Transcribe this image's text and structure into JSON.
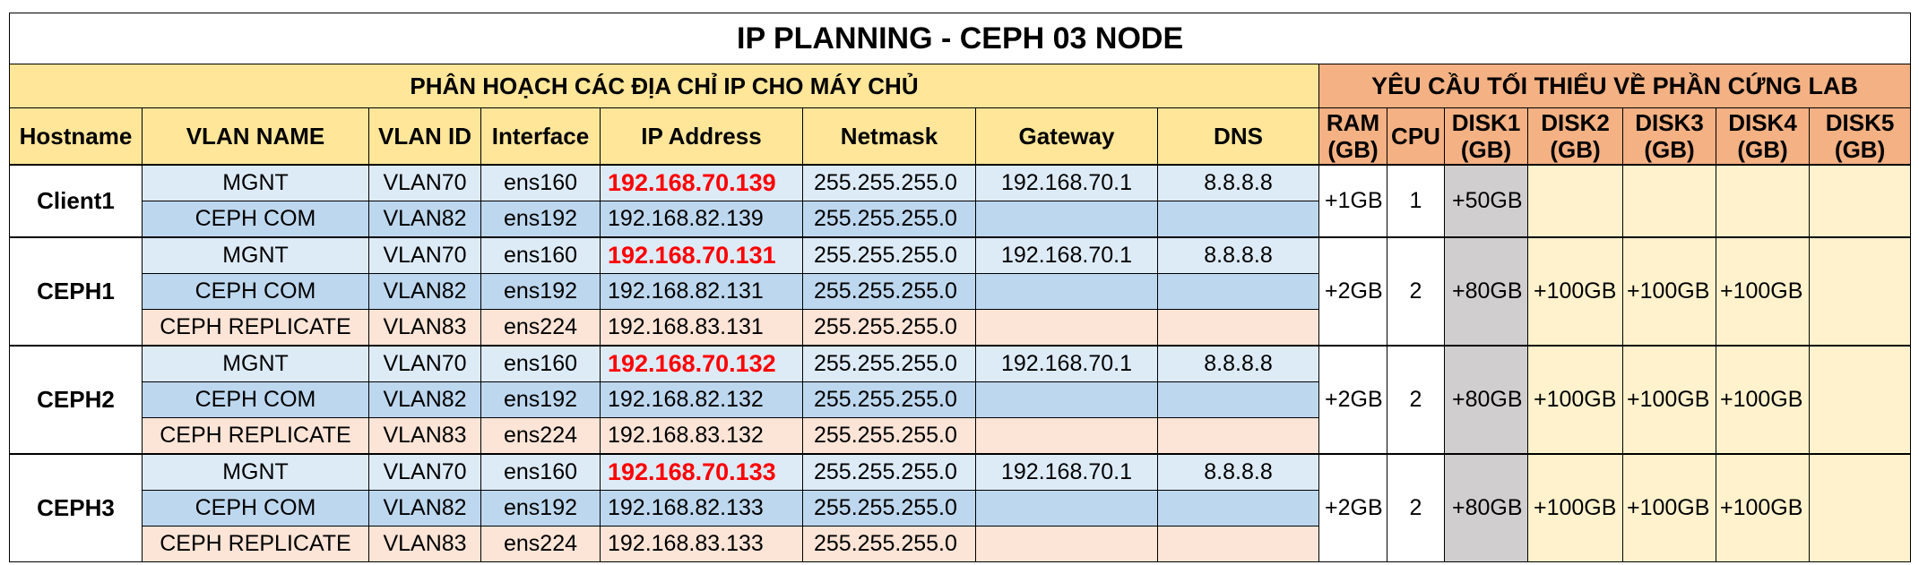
{
  "title": "IP PLANNING  - CEPH 03 NODE",
  "section_left": "PHÂN HOẠCH CÁC ĐỊA CHỈ IP CHO MÁY CHỦ",
  "section_right": "YÊU CẦU TỐI THIỂU VỀ PHẦN CỨNG LAB",
  "headers": {
    "hostname": "Hostname",
    "vlan_name": "VLAN NAME",
    "vlan_id": "VLAN ID",
    "interface": "Interface",
    "ip": "IP Address",
    "netmask": "Netmask",
    "gateway": "Gateway",
    "dns": "DNS",
    "ram_1": "RAM",
    "ram_2": "(GB)",
    "cpu": "CPU",
    "disk1_1": "DISK1",
    "disk1_2": "(GB)",
    "disk2_1": "DISK2",
    "disk2_2": "(GB)",
    "disk3_1": "DISK3",
    "disk3_2": "(GB)",
    "disk4_1": "DISK4",
    "disk4_2": "(GB)",
    "disk5_1": "DISK5",
    "disk5_2": "(GB)"
  },
  "hosts": [
    {
      "name": "Client1",
      "ram": "+1GB",
      "cpu": "1",
      "disk1": "+50GB",
      "disk2": "",
      "disk3": "",
      "disk4": "",
      "disk5": "",
      "rows": [
        {
          "vlan_name": "MGNT",
          "vlan_id": "VLAN70",
          "iface": "ens160",
          "ip": "192.168.70.139",
          "netmask": "255.255.255.0",
          "gateway": "192.168.70.1",
          "dns": "8.8.8.8"
        },
        {
          "vlan_name": "CEPH COM",
          "vlan_id": "VLAN82",
          "iface": "ens192",
          "ip": "192.168.82.139",
          "netmask": "255.255.255.0",
          "gateway": "",
          "dns": ""
        }
      ]
    },
    {
      "name": "CEPH1",
      "ram": "+2GB",
      "cpu": "2",
      "disk1": "+80GB",
      "disk2": "+100GB",
      "disk3": "+100GB",
      "disk4": "+100GB",
      "disk5": "",
      "rows": [
        {
          "vlan_name": "MGNT",
          "vlan_id": "VLAN70",
          "iface": "ens160",
          "ip": "192.168.70.131",
          "netmask": "255.255.255.0",
          "gateway": "192.168.70.1",
          "dns": "8.8.8.8"
        },
        {
          "vlan_name": "CEPH COM",
          "vlan_id": "VLAN82",
          "iface": "ens192",
          "ip": "192.168.82.131",
          "netmask": "255.255.255.0",
          "gateway": "",
          "dns": ""
        },
        {
          "vlan_name": "CEPH REPLICATE",
          "vlan_id": "VLAN83",
          "iface": "ens224",
          "ip": "192.168.83.131",
          "netmask": "255.255.255.0",
          "gateway": "",
          "dns": ""
        }
      ]
    },
    {
      "name": "CEPH2",
      "ram": "+2GB",
      "cpu": "2",
      "disk1": "+80GB",
      "disk2": "+100GB",
      "disk3": "+100GB",
      "disk4": "+100GB",
      "disk5": "",
      "rows": [
        {
          "vlan_name": "MGNT",
          "vlan_id": "VLAN70",
          "iface": "ens160",
          "ip": "192.168.70.132",
          "netmask": "255.255.255.0",
          "gateway": "192.168.70.1",
          "dns": "8.8.8.8"
        },
        {
          "vlan_name": "CEPH COM",
          "vlan_id": "VLAN82",
          "iface": "ens192",
          "ip": "192.168.82.132",
          "netmask": "255.255.255.0",
          "gateway": "",
          "dns": ""
        },
        {
          "vlan_name": "CEPH REPLICATE",
          "vlan_id": "VLAN83",
          "iface": "ens224",
          "ip": "192.168.83.132",
          "netmask": "255.255.255.0",
          "gateway": "",
          "dns": ""
        }
      ]
    },
    {
      "name": "CEPH3",
      "ram": "+2GB",
      "cpu": "2",
      "disk1": "+80GB",
      "disk2": "+100GB",
      "disk3": "+100GB",
      "disk4": "+100GB",
      "disk5": "",
      "rows": [
        {
          "vlan_name": "MGNT",
          "vlan_id": "VLAN70",
          "iface": "ens160",
          "ip": "192.168.70.133",
          "netmask": "255.255.255.0",
          "gateway": "192.168.70.1",
          "dns": "8.8.8.8"
        },
        {
          "vlan_name": "CEPH COM",
          "vlan_id": "VLAN82",
          "iface": "ens192",
          "ip": "192.168.82.133",
          "netmask": "255.255.255.0",
          "gateway": "",
          "dns": ""
        },
        {
          "vlan_name": "CEPH REPLICATE",
          "vlan_id": "VLAN83",
          "iface": "ens224",
          "ip": "192.168.83.133",
          "netmask": "255.255.255.0",
          "gateway": "",
          "dns": ""
        }
      ]
    }
  ]
}
